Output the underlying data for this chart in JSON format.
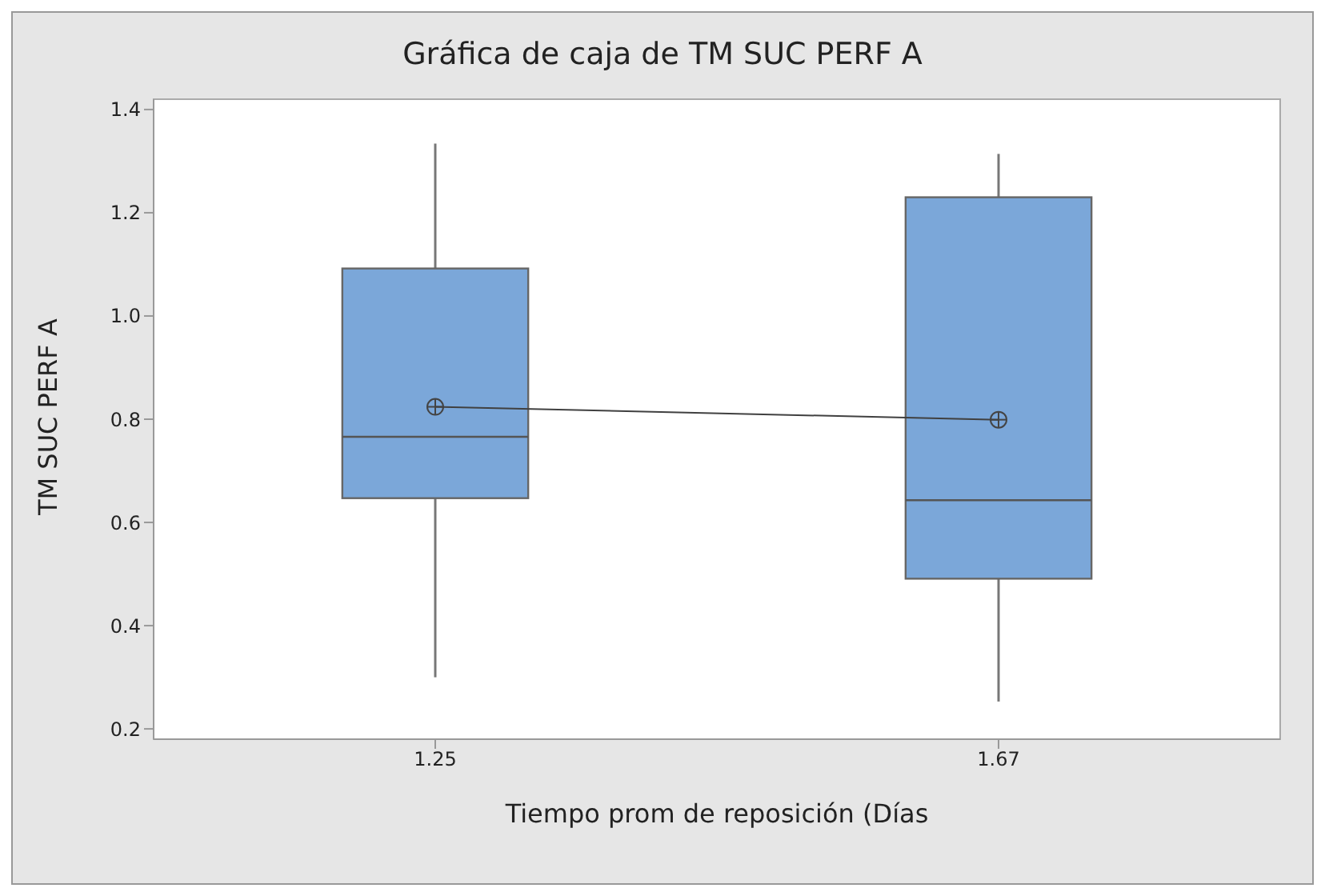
{
  "chart_data": {
    "type": "box",
    "title": "Gráfica de caja de TM SUC PERF A",
    "xlabel": "Tiempo prom de reposición (Días",
    "ylabel": "TM SUC PERF A",
    "categories": [
      "1.25",
      "1.67"
    ],
    "color": "#7ba7d9",
    "boxes": [
      {
        "low": 0.3,
        "q1": 0.647,
        "median": 0.766,
        "q3": 1.092,
        "high": 1.334,
        "mean": 0.824
      },
      {
        "low": 0.253,
        "q1": 0.491,
        "median": 0.643,
        "q3": 1.23,
        "high": 1.314,
        "mean": 0.799
      }
    ],
    "series": [
      {
        "type": "line",
        "color": "#404040",
        "values": [
          0.824,
          0.799
        ]
      }
    ],
    "ylim": [
      0.18,
      1.42
    ],
    "yticks": [
      0.2,
      0.4,
      0.6,
      0.8,
      {
        "value": 1,
        "label": "1.0"
      },
      1.2,
      1.4
    ],
    "legend": false
  }
}
